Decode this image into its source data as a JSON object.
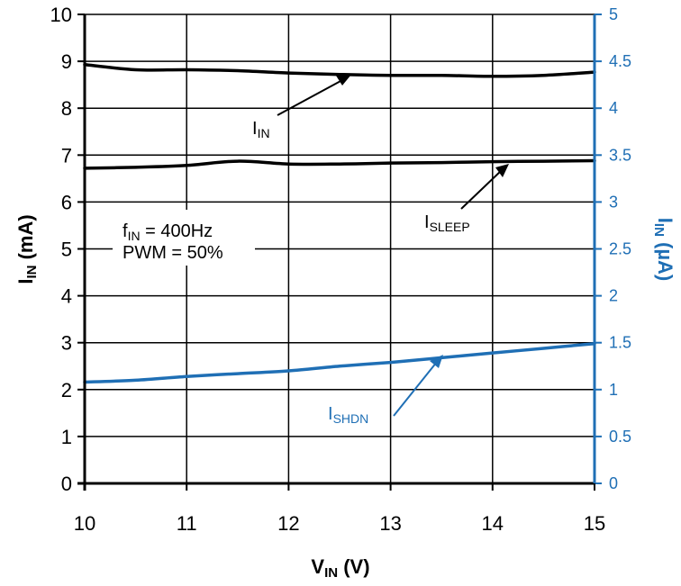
{
  "chart_data": {
    "type": "line",
    "x": [
      10,
      10.5,
      11,
      11.5,
      12,
      12.5,
      13,
      13.5,
      14,
      14.5,
      15
    ],
    "xlabel": {
      "main": "V",
      "sub": "IN",
      "unit": " (V)"
    },
    "ylabel_left": {
      "main": "I",
      "sub": "IN",
      "unit": " (mA)"
    },
    "ylabel_right": {
      "main": "I",
      "sub": "IN",
      "unit": " (µA)"
    },
    "xlim": [
      10,
      15
    ],
    "ylim_left": [
      0,
      10
    ],
    "ylim_right": [
      0,
      5
    ],
    "x_ticks": [
      "10",
      "11",
      "12",
      "13",
      "14",
      "15"
    ],
    "y_ticks_left": [
      "0",
      "1",
      "2",
      "3",
      "4",
      "5",
      "6",
      "7",
      "8",
      "9",
      "10"
    ],
    "y_ticks_right": [
      "0",
      "0.5",
      "1",
      "1.5",
      "2",
      "2.5",
      "3",
      "3.5",
      "4",
      "4.5",
      "5"
    ],
    "grid": true,
    "series": [
      {
        "name": "IN",
        "axis": "left",
        "color": "#000000",
        "values": [
          8.93,
          8.82,
          8.82,
          8.8,
          8.75,
          8.72,
          8.7,
          8.7,
          8.68,
          8.7,
          8.77
        ]
      },
      {
        "name": "SLEEP",
        "axis": "left",
        "color": "#000000",
        "values": [
          6.72,
          6.74,
          6.78,
          6.87,
          6.81,
          6.81,
          6.83,
          6.84,
          6.86,
          6.87,
          6.88
        ]
      },
      {
        "name": "SHDN",
        "axis": "right",
        "color": "#1f6fb5",
        "values": [
          1.08,
          1.1,
          1.14,
          1.17,
          1.2,
          1.25,
          1.29,
          1.34,
          1.39,
          1.44,
          1.49
        ]
      }
    ],
    "annotations": [
      {
        "id": "iin",
        "main": "I",
        "sub": "IN"
      },
      {
        "id": "isleep",
        "main": "I",
        "sub": "SLEEP"
      },
      {
        "id": "ishdn",
        "main": "I",
        "sub": "SHDN"
      },
      {
        "id": "cond1",
        "main": "f",
        "sub": "IN",
        "rest": " = 400Hz"
      },
      {
        "id": "cond2",
        "text": "PWM = 50%"
      }
    ],
    "colors": {
      "left_axis": "#000000",
      "right_axis": "#1f6fb5",
      "grid": "#000000"
    }
  }
}
